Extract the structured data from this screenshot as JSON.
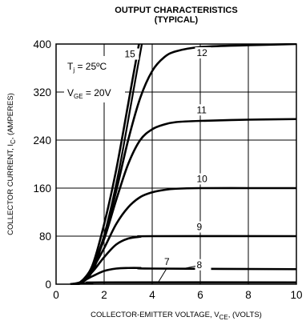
{
  "chart_data": {
    "type": "line",
    "title": "OUTPUT CHARACTERISTICS",
    "subtitle": "(TYPICAL)",
    "xlabel": {
      "main": "COLLECTOR-EMITTER VOLTAGE, V",
      "sub": "CE",
      "tail": ", (VOLTS)"
    },
    "ylabel": {
      "main": "COLLECTOR CURRENT, I",
      "sub": "C",
      "tail": ", (AMPERES)"
    },
    "xlim": [
      0,
      10
    ],
    "ylim": [
      0,
      400
    ],
    "x_ticks": [
      "0",
      "2",
      "4",
      "6",
      "8",
      "10"
    ],
    "y_ticks": [
      "0",
      "80",
      "160",
      "240",
      "320",
      "400"
    ],
    "grid": true,
    "annotation": {
      "tj": "T",
      "tj_sub": "j",
      "tj_tail": " = 25ºC",
      "vge": "V",
      "vge_sub": "GE",
      "vge_tail": " = 20V"
    },
    "series": [
      {
        "name": "15",
        "points": [
          [
            0.6,
            0
          ],
          [
            1.0,
            3
          ],
          [
            1.5,
            30
          ],
          [
            2.0,
            100
          ],
          [
            2.5,
            190
          ],
          [
            3.0,
            300
          ],
          [
            3.2,
            345
          ],
          [
            3.45,
            400
          ]
        ]
      },
      {
        "name": "12",
        "points": [
          [
            0.6,
            0
          ],
          [
            1.0,
            3
          ],
          [
            1.5,
            28
          ],
          [
            2.0,
            80
          ],
          [
            2.5,
            155
          ],
          [
            3.0,
            240
          ],
          [
            3.5,
            310
          ],
          [
            4.0,
            355
          ],
          [
            4.5,
            378
          ],
          [
            5.0,
            388
          ],
          [
            6.0,
            395
          ],
          [
            8.0,
            398
          ],
          [
            10.0,
            400
          ]
        ]
      },
      {
        "name": "11",
        "points": [
          [
            0.6,
            0
          ],
          [
            1.0,
            3
          ],
          [
            1.5,
            28
          ],
          [
            2.0,
            75
          ],
          [
            2.5,
            140
          ],
          [
            3.0,
            200
          ],
          [
            3.5,
            240
          ],
          [
            4.0,
            258
          ],
          [
            4.5,
            266
          ],
          [
            5.0,
            270
          ],
          [
            6.0,
            272
          ],
          [
            8.0,
            274
          ],
          [
            10.0,
            275
          ]
        ]
      },
      {
        "name": "10",
        "points": [
          [
            0.6,
            0
          ],
          [
            1.0,
            3
          ],
          [
            1.5,
            25
          ],
          [
            2.0,
            60
          ],
          [
            2.5,
            100
          ],
          [
            3.0,
            128
          ],
          [
            3.5,
            145
          ],
          [
            4.0,
            153
          ],
          [
            4.5,
            157
          ],
          [
            5.0,
            159
          ],
          [
            6.0,
            160
          ],
          [
            8.0,
            160
          ],
          [
            10.0,
            160
          ]
        ]
      },
      {
        "name": "9",
        "points": [
          [
            0.6,
            0
          ],
          [
            1.0,
            3
          ],
          [
            1.5,
            20
          ],
          [
            2.0,
            45
          ],
          [
            2.5,
            66
          ],
          [
            3.0,
            76
          ],
          [
            3.5,
            79
          ],
          [
            4.0,
            80
          ],
          [
            10.0,
            80
          ]
        ]
      },
      {
        "name": "8",
        "points": [
          [
            0.6,
            0
          ],
          [
            1.0,
            3
          ],
          [
            1.5,
            13
          ],
          [
            2.0,
            22
          ],
          [
            2.5,
            26
          ],
          [
            3.0,
            27
          ],
          [
            3.5,
            27
          ],
          [
            4.0,
            26
          ],
          [
            10.0,
            25
          ]
        ]
      },
      {
        "name": "7",
        "points": [
          [
            0.6,
            0
          ],
          [
            1.0,
            1
          ],
          [
            1.5,
            2
          ],
          [
            2.0,
            3
          ],
          [
            10.0,
            3
          ]
        ]
      }
    ],
    "curve_labels": [
      {
        "text": "15",
        "x": 2.85,
        "y": 378
      },
      {
        "text": "12",
        "x": 5.85,
        "y": 380
      },
      {
        "text": "11",
        "x": 5.85,
        "y": 285
      },
      {
        "text": "10",
        "x": 5.85,
        "y": 170
      },
      {
        "text": "9",
        "x": 5.85,
        "y": 90
      },
      {
        "text": "8",
        "x": 5.85,
        "y": 27
      },
      {
        "text": "7",
        "x": 4.5,
        "y": 32
      }
    ],
    "colors": {
      "line": "#000000",
      "grid": "#000000",
      "background": "#ffffff"
    }
  }
}
